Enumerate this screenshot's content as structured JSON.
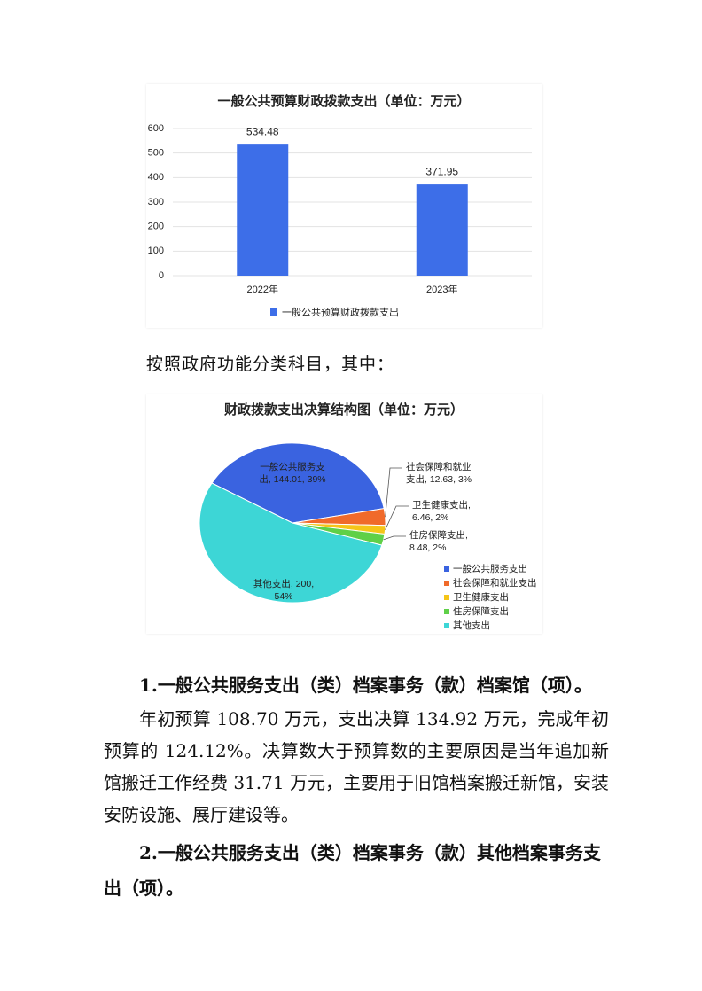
{
  "chart_data": [
    {
      "type": "bar",
      "title": "一般公共预算财政拨款支出（单位：万元）",
      "categories": [
        "2022年",
        "2023年"
      ],
      "series": [
        {
          "name": "一般公共预算财政拨款支出",
          "color": "#3d6ee8",
          "values": [
            534.48,
            371.95
          ]
        }
      ],
      "ylim": [
        0,
        600
      ],
      "yticks": [
        0,
        100,
        200,
        300,
        400,
        500,
        600
      ],
      "grid": true,
      "legend": "bottom"
    },
    {
      "type": "pie",
      "title": "财政拨款支出决算结构图（单位：万元）",
      "categories": [
        "一般公共服务支出",
        "社会保障和就业支出",
        "卫生健康支出",
        "住房保障支出",
        "其他支出"
      ],
      "values": [
        144.01,
        12.63,
        6.46,
        8.48,
        200
      ],
      "value_labels": [
        "一般公共服务支\n出, 144.01, 39%",
        "社会保障和就业\n支出, 12.63, 3%",
        "卫生健康支出,\n6.46, 2%",
        "住房保障支出,\n8.48, 2%",
        "其他支出, 200,\n54%"
      ],
      "colors": [
        "#3a63e0",
        "#f06a2a",
        "#f5c518",
        "#5fd048",
        "#3dd6d6"
      ],
      "legend": "lower right"
    }
  ],
  "document": {
    "intro": "按照政府功能分类科目，其中：",
    "sections": [
      {
        "heading": "1.一般公共服务支出（类）档案事务（款）档案馆（项）。",
        "paragraph": "年初预算 108.70 万元，支出决算 134.92 万元，完成年初预算的 124.12%。决算数大于预算数的主要原因是当年追加新馆搬迁工作经费 31.71 万元，主要用于旧馆档案搬迁新馆，安装安防设施、展厅建设等。"
      },
      {
        "heading": "2.一般公共服务支出（类）档案事务（款）其他档案事务支出（项）。"
      }
    ]
  }
}
